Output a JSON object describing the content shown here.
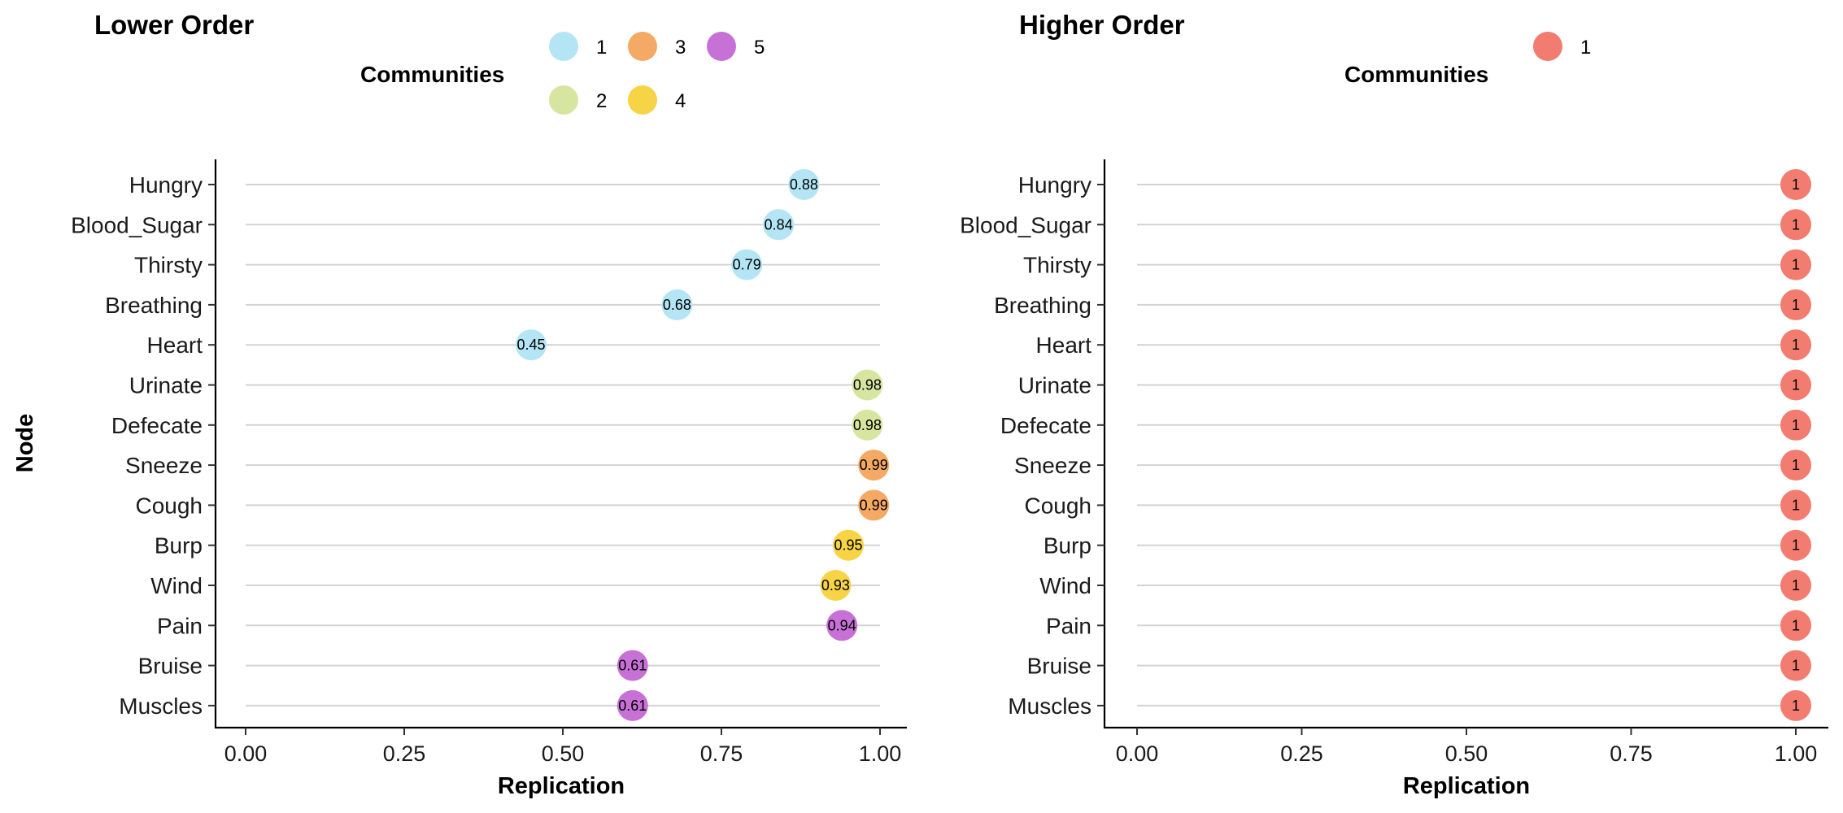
{
  "chart_data": [
    {
      "type": "scatter",
      "title": "Lower Order",
      "xlabel": "Replication",
      "ylabel": "Node",
      "xlim": [
        0,
        1
      ],
      "x_ticks": [
        "0.00",
        "0.25",
        "0.50",
        "0.75",
        "1.00"
      ],
      "grid": "horizontal",
      "legend": {
        "title": "Communities",
        "position": "top",
        "entries": [
          {
            "label": "1",
            "color": "#B3E5F5"
          },
          {
            "label": "2",
            "color": "#D6E5A0"
          },
          {
            "label": "3",
            "color": "#F4A964"
          },
          {
            "label": "4",
            "color": "#F7D445"
          },
          {
            "label": "5",
            "color": "#C771D6"
          }
        ]
      },
      "categories": [
        "Hungry",
        "Blood_Sugar",
        "Thirsty",
        "Breathing",
        "Heart",
        "Urinate",
        "Defecate",
        "Sneeze",
        "Cough",
        "Burp",
        "Wind",
        "Pain",
        "Bruise",
        "Muscles"
      ],
      "values": [
        0.88,
        0.84,
        0.79,
        0.68,
        0.45,
        0.98,
        0.98,
        0.99,
        0.99,
        0.95,
        0.93,
        0.94,
        0.61,
        0.61
      ],
      "value_labels": [
        "0.88",
        "0.84",
        "0.79",
        "0.68",
        "0.45",
        "0.98",
        "0.98",
        "0.99",
        "0.99",
        "0.95",
        "0.93",
        "0.94",
        "0.61",
        "0.61"
      ],
      "communities": [
        "1",
        "1",
        "1",
        "1",
        "1",
        "2",
        "2",
        "3",
        "3",
        "4",
        "4",
        "5",
        "5",
        "5"
      ]
    },
    {
      "type": "scatter",
      "title": "Higher Order",
      "xlabel": "Replication",
      "ylabel": "",
      "xlim": [
        0,
        1
      ],
      "x_ticks": [
        "0.00",
        "0.25",
        "0.50",
        "0.75",
        "1.00"
      ],
      "grid": "horizontal",
      "legend": {
        "title": "Communities",
        "position": "top",
        "entries": [
          {
            "label": "1",
            "color": "#F17C6F"
          }
        ]
      },
      "categories": [
        "Hungry",
        "Blood_Sugar",
        "Thirsty",
        "Breathing",
        "Heart",
        "Urinate",
        "Defecate",
        "Sneeze",
        "Cough",
        "Burp",
        "Wind",
        "Pain",
        "Bruise",
        "Muscles"
      ],
      "values": [
        1,
        1,
        1,
        1,
        1,
        1,
        1,
        1,
        1,
        1,
        1,
        1,
        1,
        1
      ],
      "value_labels": [
        "1",
        "1",
        "1",
        "1",
        "1",
        "1",
        "1",
        "1",
        "1",
        "1",
        "1",
        "1",
        "1",
        "1"
      ],
      "communities": [
        "1",
        "1",
        "1",
        "1",
        "1",
        "1",
        "1",
        "1",
        "1",
        "1",
        "1",
        "1",
        "1",
        "1"
      ]
    }
  ]
}
